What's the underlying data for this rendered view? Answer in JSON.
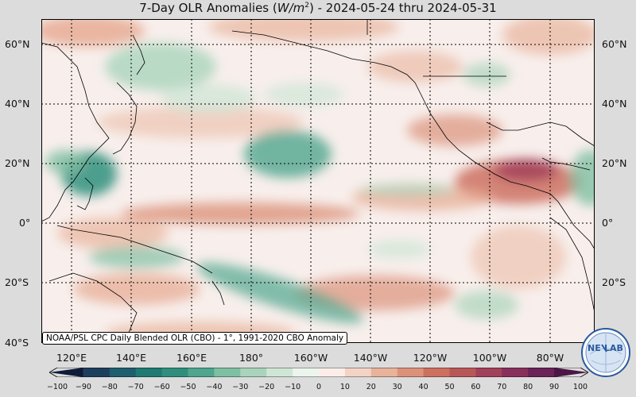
{
  "title_plain": "7-Day OLR Anomalies (",
  "title_italic": "W/m",
  "title_sup": "2",
  "title_tail": ") - 2024-05-24 thru 2024-05-31",
  "latitudes": {
    "n60": "60°N",
    "n40": "40°N",
    "n20": "20°N",
    "eq": "0°",
    "s20": "20°S",
    "s40": "40°S"
  },
  "longitudes": {
    "e120": "120°E",
    "e140": "140°E",
    "e160": "160°E",
    "d180": "180°",
    "w160": "160°W",
    "w140": "140°W",
    "w120": "120°W",
    "w100": "100°W",
    "w80": "80°W"
  },
  "attribution": "NOAA/PSL CPC Daily Blended OLR (CBO) - 1°, 1991-2020 CBO Anomaly",
  "logo_text_left": "NE",
  "logo_text_right": "LAB",
  "colorbar": {
    "ticks": [
      "−100",
      "−90",
      "−80",
      "−70",
      "−60",
      "−50",
      "−40",
      "−30",
      "−20",
      "−10",
      "0",
      "10",
      "20",
      "30",
      "40",
      "50",
      "60",
      "70",
      "80",
      "90",
      "100"
    ],
    "range": [
      -100,
      100
    ],
    "colors": [
      "#0e1c3a",
      "#1d3f5e",
      "#1f5e6e",
      "#1f7a73",
      "#2f8f7c",
      "#4fa58d",
      "#7fbfa2",
      "#a9d4bb",
      "#cfe6d6",
      "#ecf4ee",
      "#fbeee9",
      "#f3d3c4",
      "#e8b39b",
      "#dc927a",
      "#cd7060",
      "#b85758",
      "#a2415a",
      "#87305c",
      "#6a2258",
      "#4a1646"
    ]
  },
  "map": {
    "lon_range": [
      "110°E",
      "70°W"
    ],
    "lat_range": [
      "40°S",
      "68°N"
    ],
    "grid": "dotted"
  }
}
